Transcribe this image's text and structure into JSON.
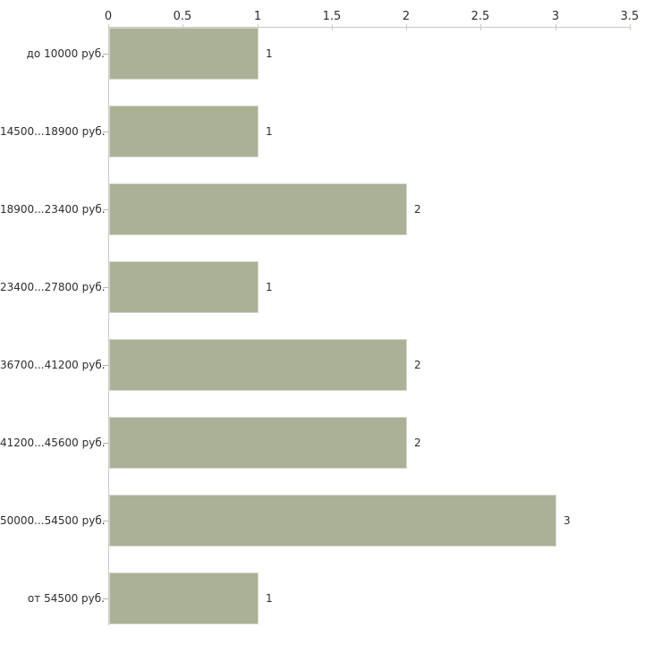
{
  "chart_data": {
    "type": "bar",
    "orientation": "horizontal",
    "title": "",
    "categories": [
      "до 10000 руб.",
      "14500...18900 руб.",
      "18900...23400 руб.",
      "23400...27800 руб.",
      "36700...41200 руб.",
      "41200...45600 руб.",
      "50000...54500 руб.",
      "от 54500 руб."
    ],
    "values": [
      1,
      1,
      2,
      1,
      2,
      2,
      3,
      1
    ],
    "x_ticks": [
      0,
      0.5,
      1,
      1.5,
      2,
      2.5,
      3,
      3.5
    ],
    "xlim": [
      0,
      3.5
    ],
    "xlabel": "",
    "ylabel": "",
    "legend": "none",
    "grid": "off",
    "axis_position": "top",
    "colors": {
      "bar": "#abb196",
      "bar_border": "#d6d8ca",
      "axis_line": "#c8c8c8",
      "x_tick_mark": "#cdcfad",
      "category_tick_mark": "#b6b8ac",
      "text": "#2e2e2e",
      "background": "#ffffff"
    }
  }
}
